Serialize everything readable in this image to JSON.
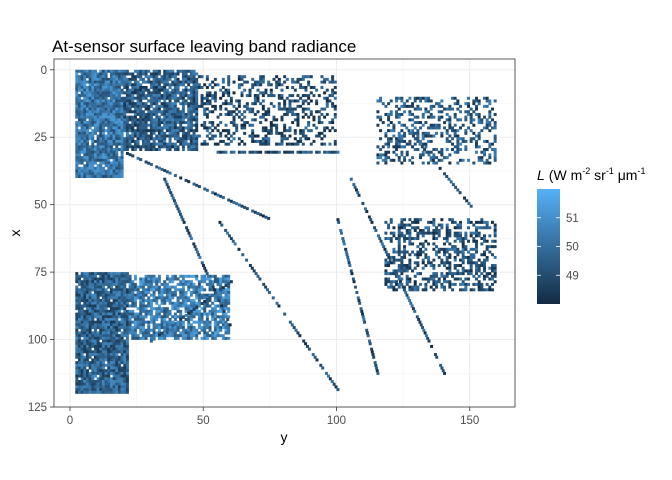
{
  "chart_data": {
    "type": "heatmap",
    "title": "At-sensor surface leaving band radiance",
    "xlabel": "y",
    "ylabel": "x",
    "x_ticks": [
      0,
      50,
      100,
      150
    ],
    "y_ticks": [
      0,
      25,
      50,
      75,
      100,
      125
    ],
    "xlim": [
      -6,
      167
    ],
    "ylim": [
      125,
      -4
    ],
    "y_reversed": true,
    "grid": true,
    "legend": {
      "title_italic": "L",
      "title_units": "(W m",
      "title_sup1": "-2",
      "title_mid": " sr",
      "title_sup2": "-1",
      "title_end": " μm",
      "title_sup3": "-1",
      "breaks": [
        "51",
        "50",
        "49"
      ],
      "break_values": [
        51,
        50,
        49
      ],
      "range": [
        48.0,
        52.0
      ],
      "low_color": "#132B43",
      "high_color": "#56B1F7",
      "placement": "right"
    },
    "note": "pixel raster of radiance values roughly 48-52 over a 160 x 120 grid; values visible only as cell colors",
    "regions": [
      {
        "x0": 2,
        "x1": 20,
        "y0": 0,
        "y1": 40,
        "level": 0.55,
        "density": 0.95
      },
      {
        "x0": 20,
        "x1": 48,
        "y0": 0,
        "y1": 30,
        "level": 0.35,
        "density": 0.85
      },
      {
        "x0": 48,
        "x1": 100,
        "y0": 2,
        "y1": 28,
        "level": 0.25,
        "density": 0.35
      },
      {
        "x0": 2,
        "x1": 22,
        "y0": 75,
        "y1": 120,
        "level": 0.4,
        "density": 0.95
      },
      {
        "x0": 22,
        "x1": 60,
        "y0": 76,
        "y1": 100,
        "level": 0.6,
        "density": 0.75
      },
      {
        "x0": 115,
        "x1": 160,
        "y0": 10,
        "y1": 35,
        "level": 0.35,
        "density": 0.35
      },
      {
        "x0": 118,
        "x1": 160,
        "y0": 55,
        "y1": 82,
        "level": 0.3,
        "density": 0.45
      }
    ]
  }
}
